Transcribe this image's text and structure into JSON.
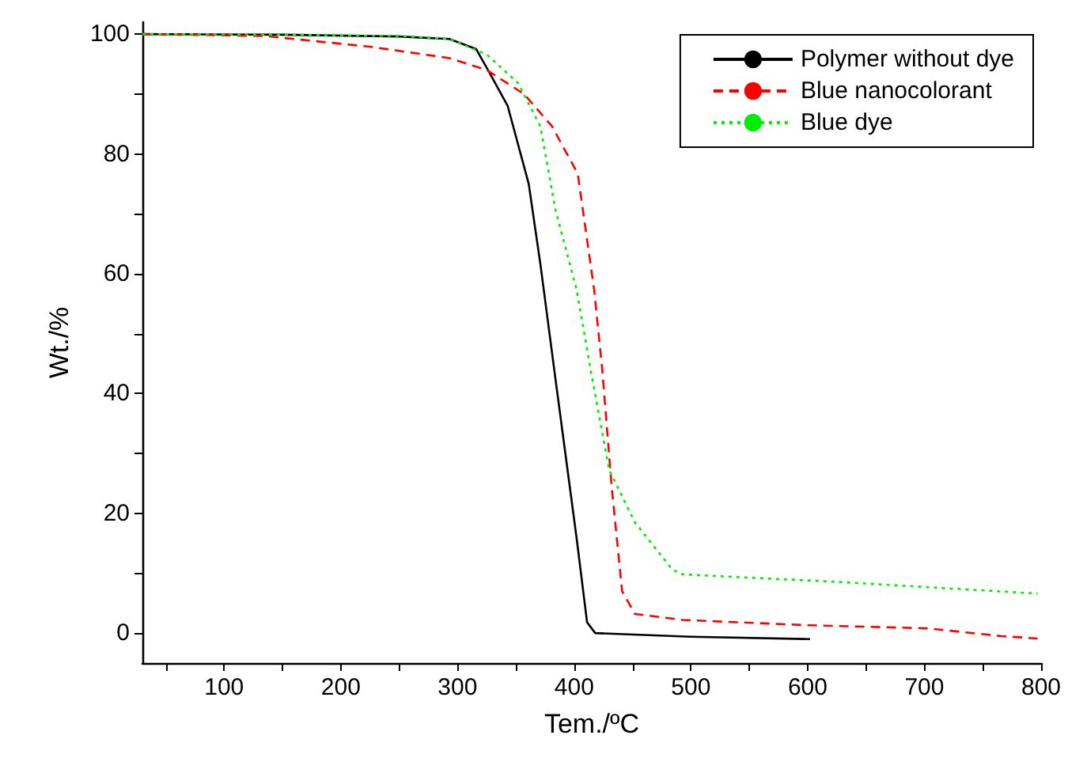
{
  "chart_data": {
    "type": "line",
    "xlabel": "Tem./ºC",
    "ylabel": "Wt./%",
    "xlim": [
      30,
      800
    ],
    "ylim": [
      -5,
      102
    ],
    "xticks": [
      {
        "value": 50,
        "label": null
      },
      100,
      {
        "value": 150,
        "label": null
      },
      200,
      {
        "value": 250,
        "label": null
      },
      300,
      {
        "value": 350,
        "label": null
      },
      400,
      {
        "value": 450,
        "label": null
      },
      500,
      {
        "value": 550,
        "label": null
      },
      600,
      {
        "value": 650,
        "label": null
      },
      700,
      {
        "value": 750,
        "label": null
      },
      800
    ],
    "yticks": [
      0,
      {
        "value": 10,
        "label": null
      },
      20,
      {
        "value": 30,
        "label": null
      },
      40,
      {
        "value": 50,
        "label": null
      },
      60,
      {
        "value": 70,
        "label": null
      },
      80,
      {
        "value": 90,
        "label": null
      },
      100
    ],
    "grid": false,
    "legend": "top right",
    "marker": "none",
    "series": [
      {
        "name": "Polymer without dye",
        "color": "#000000",
        "line_style": "solid",
        "x": [
          30,
          150,
          250,
          293,
          316,
          325,
          343,
          361,
          371,
          384,
          402,
          411,
          418,
          500,
          602
        ],
        "values": [
          100,
          99.9,
          99.6,
          99.2,
          97.5,
          94.4,
          88,
          75,
          61.6,
          42.3,
          15.9,
          1.8,
          0,
          -0.6,
          -1
        ]
      },
      {
        "name": "Blue nanocolorant",
        "color": "#ff0000",
        "line_style": "dashed",
        "x": [
          30,
          134,
          225,
          293,
          325,
          357,
          381,
          403,
          417,
          424,
          432,
          441,
          452,
          493,
          602,
          702,
          766,
          797
        ],
        "values": [
          100,
          99.7,
          97.9,
          96,
          94,
          90,
          84.6,
          76.7,
          57.4,
          44,
          24.6,
          7,
          3.2,
          2.2,
          1.3,
          0.8,
          -0.5,
          -0.9
        ]
      },
      {
        "name": "Blue dye",
        "color": "#00ee00",
        "line_style": "dotted",
        "x": [
          30,
          150,
          250,
          293,
          325,
          352,
          371,
          384,
          402,
          414,
          430,
          452,
          484,
          493,
          630,
          797
        ],
        "values": [
          100,
          99.9,
          99.7,
          99.2,
          96.6,
          91.8,
          84.6,
          70.6,
          57.4,
          44,
          27.2,
          18.5,
          10.6,
          9.8,
          8.5,
          6.6
        ]
      }
    ]
  }
}
